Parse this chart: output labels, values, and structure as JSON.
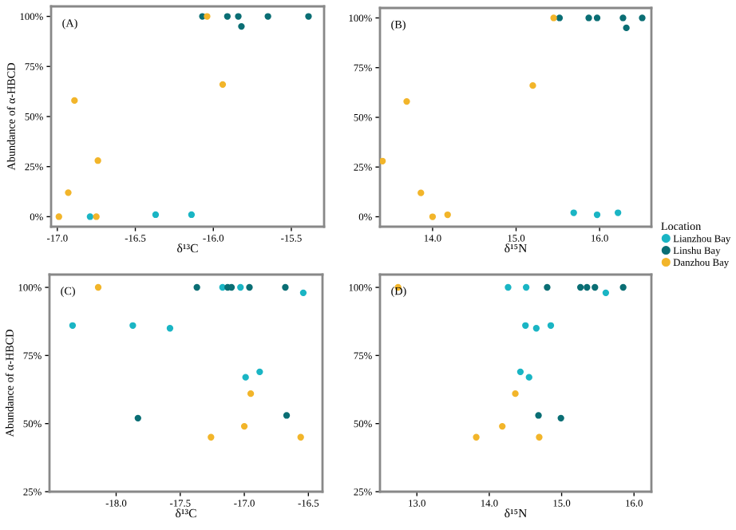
{
  "chart_data": [
    {
      "type": "scatter",
      "xlabel": "δ¹³C",
      "ylabel": "Abundance of α-HBCD",
      "annotations": [
        "(A)"
      ],
      "xlim": [
        -17.04,
        -15.29
      ],
      "xticks": [
        {
          "value": -17.0,
          "label": "-17.0"
        },
        {
          "value": -16.5,
          "label": "-16.5"
        },
        {
          "value": -16.0,
          "label": "-16.0"
        },
        {
          "value": -15.5,
          "label": "-15.5"
        }
      ],
      "ylim": [
        -5,
        105
      ],
      "yticks": [
        {
          "value": 0,
          "label": "0%"
        },
        {
          "value": 25,
          "label": "25%"
        },
        {
          "value": 50,
          "label": "50%"
        },
        {
          "value": 75,
          "label": "75%"
        },
        {
          "value": 100,
          "label": "100%"
        }
      ],
      "marker": "circle",
      "series": [
        {
          "color": "#1ab5c4",
          "x": [
            -16.79,
            -16.37,
            -16.14
          ],
          "values": [
            0,
            1,
            1
          ]
        },
        {
          "color": "#0a6e74",
          "x": [
            -16.07,
            -15.91,
            -15.84,
            -15.82,
            -15.65,
            -15.39
          ],
          "values": [
            100,
            100,
            100,
            95,
            100,
            100
          ]
        },
        {
          "color": "#f2b52a",
          "x": [
            -16.04,
            -15.94,
            -16.89,
            -16.74,
            -16.93,
            -16.99,
            -16.75
          ],
          "values": [
            100,
            66,
            58,
            28,
            12,
            0,
            0
          ]
        }
      ]
    },
    {
      "type": "scatter",
      "xlabel": "δ¹⁵N",
      "annotations": [
        "(B)"
      ],
      "xlim": [
        13.37,
        16.62
      ],
      "xticks": [
        {
          "value": 14.0,
          "label": "14.0"
        },
        {
          "value": 15.0,
          "label": "15.0"
        },
        {
          "value": 16.0,
          "label": "16.0"
        }
      ],
      "ylim": [
        -5,
        105
      ],
      "yticks": [
        {
          "value": 0,
          "label": "0%"
        },
        {
          "value": 25,
          "label": "25%"
        },
        {
          "value": 50,
          "label": "50%"
        },
        {
          "value": 75,
          "label": "75%"
        },
        {
          "value": 100,
          "label": "100%"
        }
      ],
      "marker": "circle",
      "legend": "right",
      "legend_title": "Location",
      "series": [
        {
          "name": "Lianzhou Bay",
          "color": "#1ab5c4",
          "x": [
            15.69,
            15.97,
            16.22
          ],
          "values": [
            2,
            1,
            2
          ]
        },
        {
          "name": "Linshu Bay",
          "color": "#0a6e74",
          "x": [
            15.52,
            15.87,
            15.97,
            16.28,
            16.32,
            16.51
          ],
          "values": [
            100,
            100,
            100,
            100,
            95,
            100
          ]
        },
        {
          "name": "Danzhou Bay",
          "color": "#f2b52a",
          "x": [
            15.45,
            15.2,
            13.69,
            13.4,
            13.86,
            14.0,
            14.18
          ],
          "values": [
            100,
            66,
            58,
            28,
            12,
            0,
            1
          ]
        }
      ]
    },
    {
      "type": "scatter",
      "xlabel": "δ¹³C",
      "ylabel": "Abundance of α-HBCD",
      "annotations": [
        "(C)"
      ],
      "xlim": [
        -18.52,
        -16.39
      ],
      "xticks": [
        {
          "value": -18.0,
          "label": "-18.0"
        },
        {
          "value": -17.5,
          "label": "-17.5"
        },
        {
          "value": -17.0,
          "label": "-17.0"
        },
        {
          "value": -16.5,
          "label": "-16.5"
        }
      ],
      "ylim": [
        25,
        104.7
      ],
      "yticks": [
        {
          "value": 25,
          "label": "25%"
        },
        {
          "value": 50,
          "label": "50%"
        },
        {
          "value": 75,
          "label": "75%"
        },
        {
          "value": 100,
          "label": "100%"
        }
      ],
      "marker": "circle",
      "series": [
        {
          "color": "#1ab5c4",
          "x": [
            -18.34,
            -17.87,
            -17.58,
            -17.17,
            -17.03,
            -16.54,
            -16.99,
            -16.88
          ],
          "values": [
            86,
            86,
            85,
            100,
            100,
            98,
            67,
            69
          ]
        },
        {
          "color": "#0a6e74",
          "x": [
            -17.37,
            -17.13,
            -17.1,
            -16.96,
            -16.68,
            -17.83,
            -16.67
          ],
          "values": [
            100,
            100,
            100,
            100,
            100,
            52,
            53
          ]
        },
        {
          "color": "#f2b52a",
          "x": [
            -18.14,
            -17.26,
            -17.0,
            -16.95,
            -16.56
          ],
          "values": [
            100,
            45,
            49,
            61,
            45
          ]
        }
      ]
    },
    {
      "type": "scatter",
      "xlabel": "δ¹⁵N",
      "annotations": [
        "(D)"
      ],
      "xlim": [
        12.49,
        16.24
      ],
      "xticks": [
        {
          "value": 13.0,
          "label": "13.0"
        },
        {
          "value": 14.0,
          "label": "14.0"
        },
        {
          "value": 15.0,
          "label": "15.0"
        },
        {
          "value": 16.0,
          "label": "16.0"
        }
      ],
      "ylim": [
        25,
        104.7
      ],
      "yticks": [
        {
          "value": 25,
          "label": "25%"
        },
        {
          "value": 50,
          "label": "50%"
        },
        {
          "value": 75,
          "label": "75%"
        },
        {
          "value": 100,
          "label": "100%"
        }
      ],
      "marker": "circle",
      "series": [
        {
          "color": "#1ab5c4",
          "x": [
            14.26,
            14.51,
            15.61,
            14.5,
            14.65,
            14.85,
            14.43,
            14.55
          ],
          "values": [
            100,
            100,
            98,
            86,
            85,
            86,
            69,
            67
          ]
        },
        {
          "color": "#0a6e74",
          "x": [
            14.8,
            15.26,
            15.35,
            15.46,
            15.85,
            14.68,
            14.99
          ],
          "values": [
            100,
            100,
            100,
            100,
            100,
            53,
            52
          ]
        },
        {
          "color": "#f2b52a",
          "x": [
            12.74,
            14.36,
            14.18,
            13.82,
            14.69
          ],
          "values": [
            100,
            61,
            49,
            45,
            45
          ]
        }
      ]
    }
  ]
}
